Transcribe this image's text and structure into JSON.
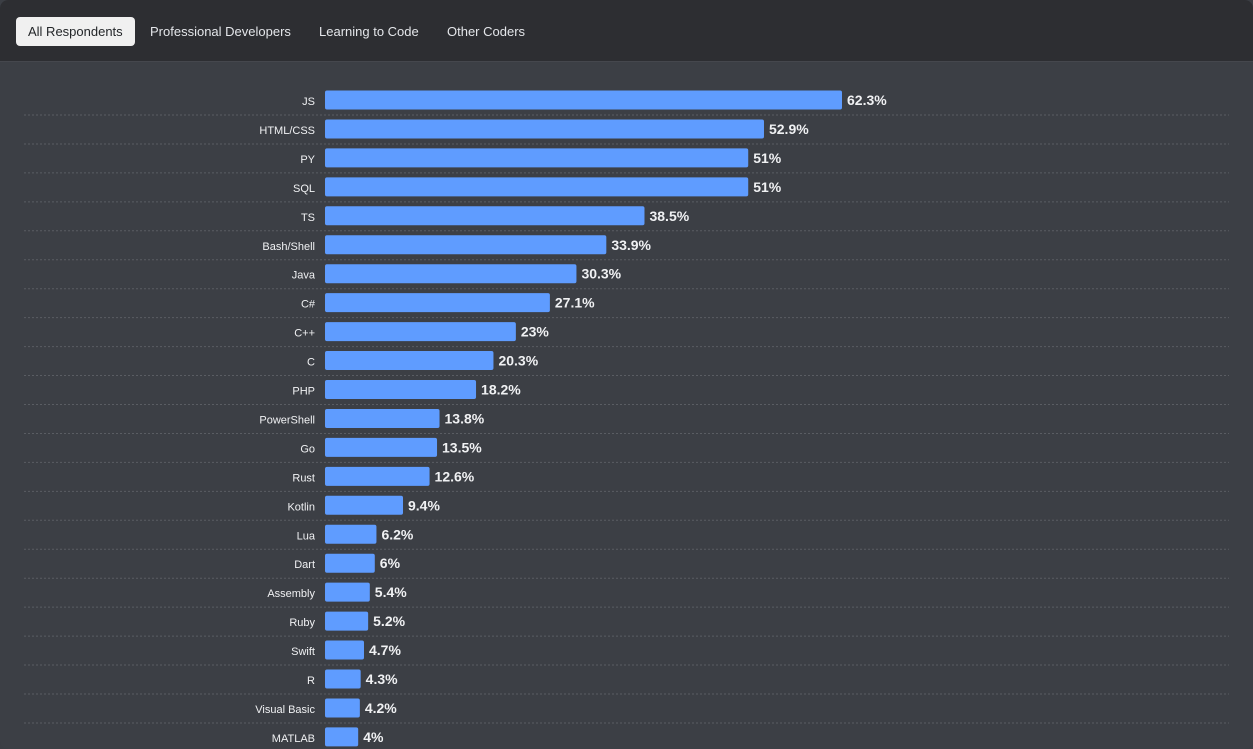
{
  "tabs": [
    {
      "label": "All Respondents",
      "active": true
    },
    {
      "label": "Professional Developers",
      "active": false
    },
    {
      "label": "Learning to Code",
      "active": false
    },
    {
      "label": "Other Coders",
      "active": false
    }
  ],
  "colors": {
    "bar": "#5f9cff",
    "background": "#3c3f45",
    "tabbar": "#2d2e32",
    "text": "#f0f1f3"
  },
  "chart_data": {
    "type": "bar",
    "orientation": "horizontal",
    "categories": [
      "JS",
      "HTML/CSS",
      "PY",
      "SQL",
      "TS",
      "Bash/Shell",
      "Java",
      "C#",
      "C++",
      "C",
      "PHP",
      "PowerShell",
      "Go",
      "Rust",
      "Kotlin",
      "Lua",
      "Dart",
      "Assembly",
      "Ruby",
      "Swift",
      "R",
      "Visual Basic",
      "MATLAB"
    ],
    "values": [
      62.3,
      52.9,
      51,
      51,
      38.5,
      33.9,
      30.3,
      27.1,
      23,
      20.3,
      18.2,
      13.8,
      13.5,
      12.6,
      9.4,
      6.2,
      6,
      5.4,
      5.2,
      4.7,
      4.3,
      4.2,
      4
    ],
    "value_suffix": "%",
    "title": "",
    "xlabel": "",
    "ylabel": "",
    "xlim": [
      0,
      62.3
    ],
    "grid": false
  }
}
